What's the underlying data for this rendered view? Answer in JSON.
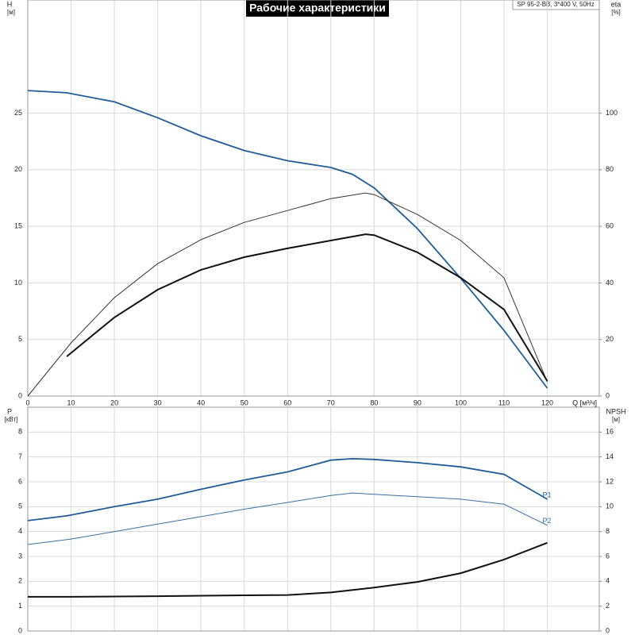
{
  "chart_data": [
    {
      "type": "line",
      "title": "Рабочие характеристики",
      "annotation": "SP 95-2-BB, 3*400 V, 50Hz",
      "ylabel": "H",
      "yunit": "[м]",
      "y2label": "eta",
      "y2unit": "[%]",
      "xlabel": "Q [м³/ч]",
      "xlim": [
        0,
        132
      ],
      "xticks": [
        0,
        10,
        20,
        30,
        40,
        50,
        60,
        70,
        80,
        90,
        100,
        110,
        120
      ],
      "ylim": [
        0,
        35
      ],
      "yticks": [
        0,
        5,
        10,
        15,
        20,
        25
      ],
      "y2lim": [
        0,
        140
      ],
      "y2ticks": [
        0,
        20,
        40,
        60,
        80,
        100
      ],
      "grid": true,
      "series": [
        {
          "color": "#1f5c99",
          "linewidth": 1.8,
          "axis": "y",
          "x": [
            0,
            9,
            20,
            30,
            40,
            50,
            60,
            70,
            75,
            80,
            90,
            100,
            110,
            120
          ],
          "values": [
            27.0,
            26.8,
            26.0,
            24.6,
            23.0,
            21.7,
            20.8,
            20.2,
            19.6,
            18.4,
            14.8,
            10.4,
            5.8,
            0.7
          ]
        },
        {
          "color": "#333333",
          "linewidth": 1,
          "axis": "y2",
          "x": [
            0,
            10,
            20,
            30,
            40,
            50,
            60,
            70,
            78,
            80,
            90,
            100,
            110,
            120
          ],
          "values": [
            0,
            18.8,
            34.8,
            46.8,
            55.3,
            61.4,
            65.6,
            69.8,
            71.8,
            71.2,
            64.2,
            55.0,
            41.8,
            5.0
          ]
        },
        {
          "color": "#111111",
          "linewidth": 2,
          "axis": "y2",
          "x": [
            9,
            20,
            30,
            40,
            50,
            60,
            70,
            78,
            80,
            90,
            100,
            110,
            120
          ],
          "values": [
            14.0,
            27.8,
            37.6,
            44.6,
            49.1,
            52.2,
            55.0,
            57.2,
            56.9,
            50.8,
            41.8,
            30.6,
            5.3
          ]
        }
      ]
    },
    {
      "type": "line",
      "ylabel": "P",
      "yunit": "[кВт]",
      "y2label": "NPSH",
      "y2unit": "[м]",
      "xlim": [
        0,
        132
      ],
      "xticks": [
        0,
        10,
        20,
        30,
        40,
        50,
        60,
        70,
        80,
        90,
        100,
        110,
        120
      ],
      "ylim": [
        0,
        9
      ],
      "yticks": [
        0,
        1,
        2,
        3,
        4,
        5,
        6,
        7,
        8
      ],
      "y2lim": [
        0,
        18
      ],
      "y2ticks": [
        0,
        2,
        4,
        6,
        8,
        10,
        12,
        14,
        16
      ],
      "grid": true,
      "series": [
        {
          "name": "P1",
          "color": "#1f5c99",
          "linewidth": 1.8,
          "axis": "y",
          "x": [
            0,
            9,
            20,
            30,
            40,
            50,
            60,
            70,
            75,
            80,
            90,
            100,
            110,
            120
          ],
          "values": [
            4.44,
            4.63,
            5.0,
            5.3,
            5.7,
            6.07,
            6.4,
            6.87,
            6.93,
            6.9,
            6.77,
            6.6,
            6.3,
            5.3
          ]
        },
        {
          "name": "P2",
          "color": "#3a6fa5",
          "linewidth": 1,
          "axis": "y",
          "x": [
            0,
            10,
            20,
            30,
            40,
            50,
            60,
            70,
            75,
            80,
            90,
            100,
            110,
            120
          ],
          "values": [
            3.48,
            3.7,
            4.0,
            4.3,
            4.6,
            4.9,
            5.17,
            5.45,
            5.55,
            5.5,
            5.4,
            5.3,
            5.1,
            4.25
          ]
        },
        {
          "color": "#111111",
          "linewidth": 2,
          "axis": "y2",
          "x": [
            0,
            10,
            30,
            50,
            60,
            70,
            80,
            90,
            100,
            110,
            120
          ],
          "values": [
            2.75,
            2.75,
            2.8,
            2.87,
            2.9,
            3.1,
            3.5,
            3.95,
            4.65,
            5.75,
            7.1
          ]
        }
      ]
    }
  ]
}
